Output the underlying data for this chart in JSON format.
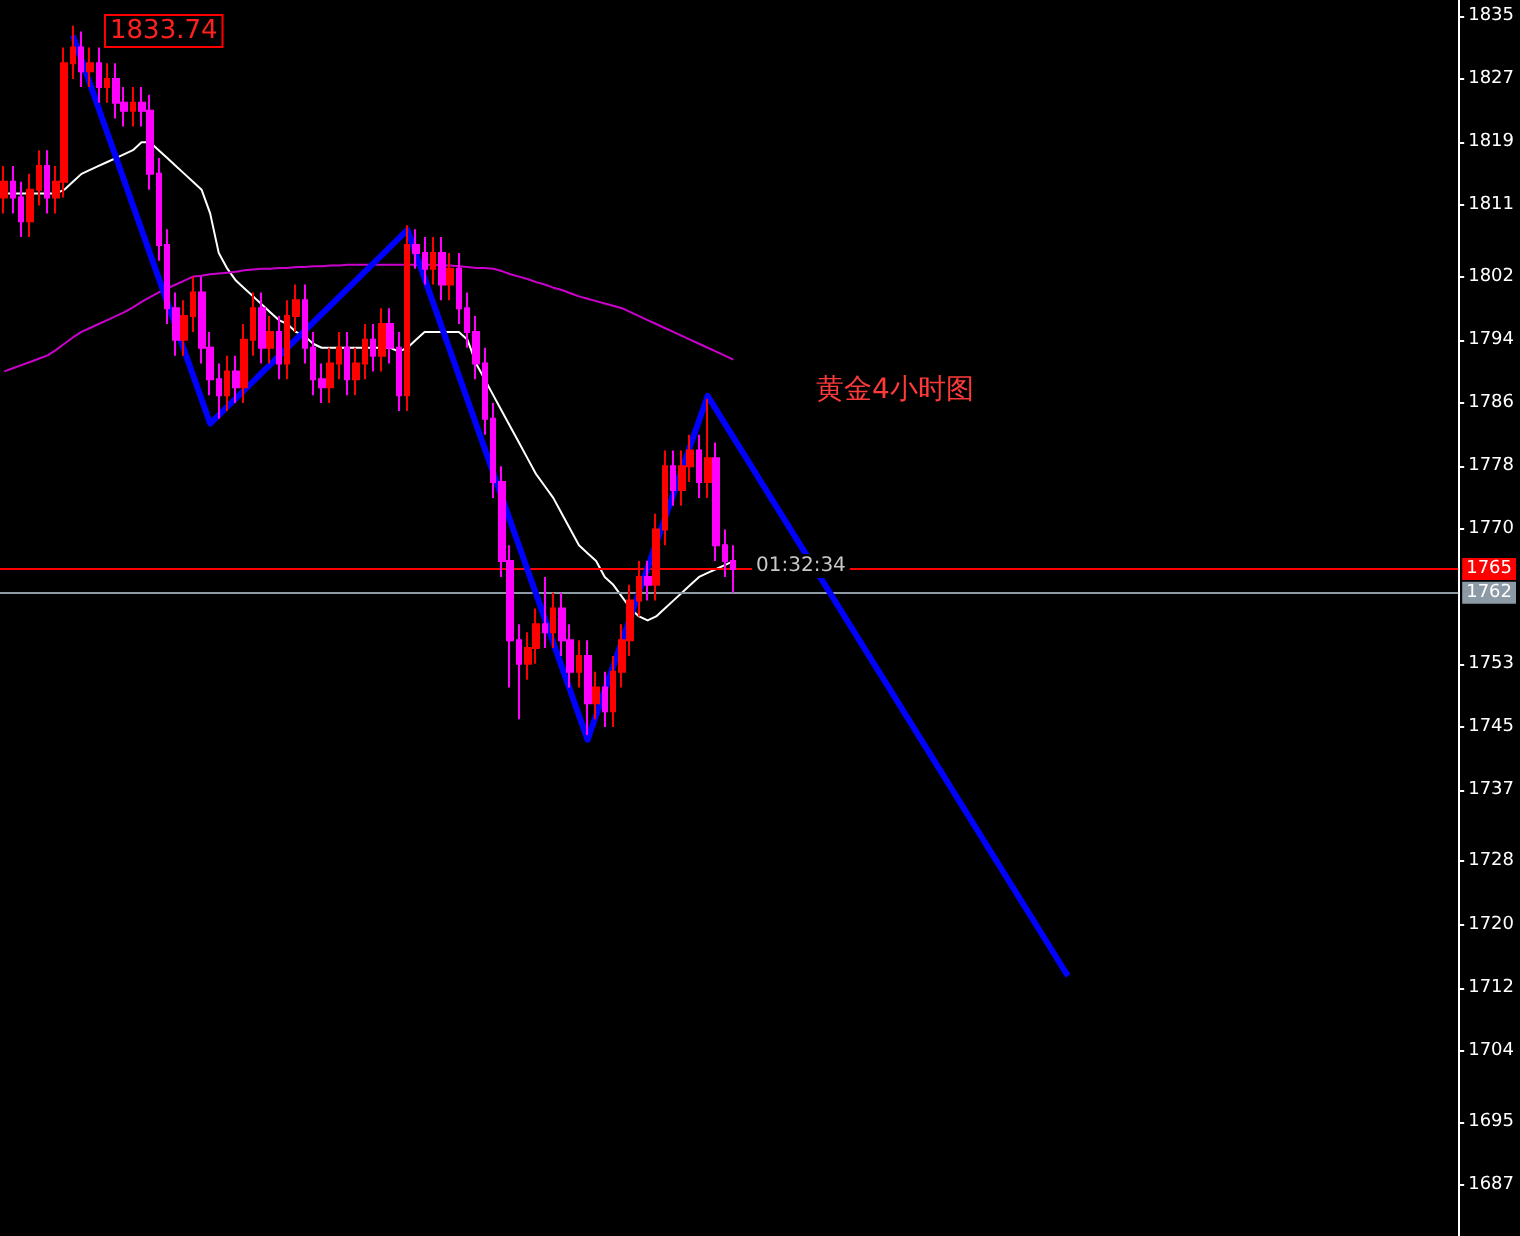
{
  "chart_data": {
    "type": "candlestick",
    "categories": [
      null,
      null,
      null,
      null,
      null,
      null,
      null,
      null,
      null,
      null,
      null,
      null,
      null,
      null,
      null,
      null,
      null,
      null,
      null,
      null,
      null,
      null,
      null,
      null,
      null,
      null,
      null,
      null,
      null,
      null,
      null,
      null,
      null,
      null,
      null,
      null,
      null,
      null,
      null,
      null,
      null,
      null,
      null,
      null,
      null,
      null,
      null,
      null,
      null,
      null,
      null,
      null,
      null,
      null,
      null,
      null,
      null,
      null,
      null,
      null,
      null,
      null,
      null,
      null,
      null,
      null,
      null,
      null,
      null,
      null,
      null,
      null,
      null,
      null,
      null,
      null,
      null,
      null,
      null,
      null,
      null,
      null,
      null,
      null,
      null,
      null,
      null,
      null,
      null,
      null,
      null,
      null,
      null,
      null,
      null,
      null,
      null,
      null,
      null,
      null,
      null,
      null,
      null,
      null,
      null,
      null,
      null,
      null,
      null,
      null,
      null,
      null,
      null,
      null,
      null,
      null,
      null,
      null,
      null,
      null,
      null,
      null,
      null,
      null,
      null,
      null,
      null,
      null,
      null,
      null,
      null,
      null,
      null,
      null,
      null,
      null,
      null,
      null,
      null,
      null,
      null,
      null,
      null,
      null,
      null,
      null,
      null,
      null,
      null,
      null,
      null,
      null,
      null,
      null,
      null,
      null,
      null,
      null,
      null,
      null,
      null,
      null,
      null,
      null,
      null,
      null,
      null,
      null,
      null,
      null
    ],
    "series": [
      {
        "ohlc": [
          [
            1812,
            1816,
            1810,
            1814
          ],
          [
            1814,
            1816,
            1810,
            1812
          ],
          [
            1812,
            1814,
            1807,
            1809
          ],
          [
            1809,
            1815,
            1807,
            1813
          ],
          [
            1813,
            1818,
            1811,
            1816
          ],
          [
            1816,
            1818,
            1810,
            1812
          ],
          [
            1812,
            1816,
            1810,
            1814
          ],
          [
            1814,
            1831,
            1812,
            1829
          ],
          [
            1829,
            1833.74,
            1827,
            1831
          ],
          [
            1831,
            1833,
            1826,
            1828
          ],
          [
            1828,
            1831,
            1826,
            1829
          ],
          [
            1829,
            1831,
            1824,
            1826
          ],
          [
            1826,
            1829,
            1824,
            1827
          ],
          [
            1827,
            1829,
            1822,
            1824
          ],
          [
            1824,
            1826,
            1821,
            1823
          ],
          [
            1823,
            1826,
            1821,
            1824
          ],
          [
            1824,
            1826,
            1821,
            1823
          ],
          [
            1823,
            1825,
            1813,
            1815
          ],
          [
            1815,
            1817,
            1804,
            1806
          ],
          [
            1806,
            1808,
            1796,
            1798
          ],
          [
            1798,
            1800,
            1792,
            1794
          ],
          [
            1794,
            1799,
            1792,
            1797
          ],
          [
            1797,
            1802,
            1795,
            1800
          ],
          [
            1800,
            1802,
            1791,
            1793
          ],
          [
            1793,
            1795,
            1787,
            1789
          ],
          [
            1789,
            1791,
            1784,
            1787
          ],
          [
            1787,
            1792,
            1785,
            1790
          ],
          [
            1790,
            1792,
            1786,
            1788
          ],
          [
            1788,
            1796,
            1786,
            1794
          ],
          [
            1794,
            1800,
            1792,
            1798
          ],
          [
            1798,
            1800,
            1791,
            1793
          ],
          [
            1793,
            1797,
            1791,
            1795
          ],
          [
            1795,
            1797,
            1789,
            1791
          ],
          [
            1791,
            1799,
            1789,
            1797
          ],
          [
            1797,
            1801,
            1795,
            1799
          ],
          [
            1799,
            1801,
            1791,
            1793
          ],
          [
            1793,
            1795,
            1787,
            1789
          ],
          [
            1789,
            1791,
            1786,
            1788
          ],
          [
            1788,
            1793,
            1786,
            1791
          ],
          [
            1791,
            1795,
            1789,
            1793
          ],
          [
            1793,
            1795,
            1787,
            1789
          ],
          [
            1789,
            1793,
            1787,
            1791
          ],
          [
            1791,
            1796,
            1789,
            1794
          ],
          [
            1794,
            1796,
            1790,
            1792
          ],
          [
            1792,
            1798,
            1790,
            1796
          ],
          [
            1796,
            1798,
            1791,
            1793
          ],
          [
            1793,
            1795,
            1785,
            1787
          ],
          [
            1787,
            1808.5,
            1785,
            1806
          ],
          [
            1806,
            1808,
            1803,
            1805
          ],
          [
            1805,
            1807,
            1801,
            1803
          ],
          [
            1803,
            1807,
            1801,
            1805
          ],
          [
            1805,
            1807,
            1799,
            1801
          ],
          [
            1801,
            1805,
            1799,
            1803
          ],
          [
            1803,
            1805,
            1796,
            1798
          ],
          [
            1798,
            1800,
            1793,
            1795
          ],
          [
            1795,
            1797,
            1789,
            1791
          ],
          [
            1791,
            1793,
            1782,
            1784
          ],
          [
            1784,
            1786,
            1774,
            1776
          ],
          [
            1776,
            1778,
            1764,
            1766
          ],
          [
            1766,
            1768,
            1750,
            1756
          ],
          [
            1756,
            1758,
            1746,
            1753
          ],
          [
            1753,
            1757,
            1751,
            1755
          ],
          [
            1755,
            1760,
            1753,
            1758
          ],
          [
            1758,
            1764,
            1755,
            1757
          ],
          [
            1757,
            1762,
            1755,
            1760
          ],
          [
            1760,
            1762,
            1754,
            1756
          ],
          [
            1756,
            1758,
            1750,
            1752
          ],
          [
            1752,
            1756,
            1750,
            1754
          ],
          [
            1754,
            1756,
            1744,
            1748
          ],
          [
            1748,
            1752,
            1746,
            1750
          ],
          [
            1750,
            1752,
            1745,
            1747
          ],
          [
            1747,
            1754,
            1745,
            1752
          ],
          [
            1752,
            1758,
            1750,
            1756
          ],
          [
            1756,
            1763,
            1754,
            1761
          ],
          [
            1761,
            1766,
            1759,
            1764
          ],
          [
            1764,
            1766,
            1761,
            1763
          ],
          [
            1763,
            1772,
            1761,
            1770
          ],
          [
            1770,
            1780,
            1768,
            1778
          ],
          [
            1778,
            1780,
            1773,
            1775
          ],
          [
            1775,
            1780,
            1773,
            1778
          ],
          [
            1778,
            1782,
            1776,
            1780
          ],
          [
            1780,
            1782,
            1774,
            1776
          ],
          [
            1776,
            1786.5,
            1774,
            1779
          ],
          [
            1779,
            1781,
            1766,
            1768
          ],
          [
            1768,
            1770,
            1764,
            1766
          ],
          [
            1766,
            1768,
            1762,
            1765
          ],
          null,
          null,
          null,
          null,
          null,
          null,
          null,
          null,
          null,
          null,
          null,
          null,
          null,
          null,
          null,
          null,
          null,
          null,
          null,
          null,
          null,
          null,
          null,
          null,
          null,
          null,
          null,
          null,
          null,
          null,
          null,
          null,
          null,
          null,
          null,
          null,
          null,
          null,
          null,
          null,
          null,
          null,
          null,
          null,
          null,
          null,
          null,
          null,
          null,
          null,
          null,
          null,
          null,
          null,
          null,
          null,
          null,
          null,
          null,
          null,
          null,
          null,
          null,
          null,
          null,
          null,
          null,
          null,
          null,
          null,
          null,
          null,
          null,
          null,
          null,
          null,
          null,
          null,
          null,
          null,
          null,
          null,
          null,
          null
        ],
        "colors": [
          "#ff0000",
          "#ff00ff",
          "#ff00ff",
          "#ff0000",
          "#ff0000",
          "#ff00ff",
          "#ff0000",
          "#ff0000",
          "#ff0000",
          "#ff00ff",
          "#ff0000",
          "#ff00ff",
          "#ff0000",
          "#ff00ff",
          "#ff00ff",
          "#ff0000",
          "#ff00ff",
          "#ff00ff",
          "#ff00ff",
          "#ff00ff",
          "#ff00ff",
          "#ff0000",
          "#ff0000",
          "#ff00ff",
          "#ff00ff",
          "#ff00ff",
          "#ff0000",
          "#ff00ff",
          "#ff0000",
          "#ff0000",
          "#ff00ff",
          "#ff0000",
          "#ff00ff",
          "#ff0000",
          "#ff0000",
          "#ff00ff",
          "#ff00ff",
          "#ff00ff",
          "#ff0000",
          "#ff0000",
          "#ff00ff",
          "#ff0000",
          "#ff0000",
          "#ff00ff",
          "#ff0000",
          "#ff00ff",
          "#ff00ff",
          "#ff0000",
          "#ff00ff",
          "#ff00ff",
          "#ff0000",
          "#ff00ff",
          "#ff0000",
          "#ff00ff",
          "#ff00ff",
          "#ff00ff",
          "#ff00ff",
          "#ff00ff",
          "#ff00ff",
          "#ff00ff",
          "#ff00ff",
          "#ff0000",
          "#ff0000",
          "#ff00ff",
          "#ff0000",
          "#ff00ff",
          "#ff00ff",
          "#ff0000",
          "#ff00ff",
          "#ff0000",
          "#ff00ff",
          "#ff0000",
          "#ff0000",
          "#ff0000",
          "#ff0000",
          "#ff00ff",
          "#ff0000",
          "#ff0000",
          "#ff00ff",
          "#ff0000",
          "#ff0000",
          "#ff00ff",
          "#ff0000",
          "#ff00ff",
          "#ff00ff",
          "#ff00ff",
          null,
          null,
          null,
          null,
          null,
          null,
          null,
          null,
          null,
          null,
          null,
          null,
          null,
          null,
          null,
          null,
          null,
          null,
          null,
          null,
          null,
          null,
          null,
          null,
          null,
          null,
          null,
          null,
          null,
          null,
          null,
          null,
          null,
          null,
          null,
          null,
          null,
          null,
          null,
          null,
          null,
          null,
          null,
          null,
          null,
          null,
          null,
          null,
          null,
          null,
          null,
          null,
          null,
          null,
          null,
          null,
          null,
          null,
          null,
          null,
          null,
          null,
          null,
          null,
          null,
          null,
          null,
          null,
          null,
          null,
          null,
          null,
          null,
          null,
          null,
          null,
          null,
          null,
          null,
          null,
          null,
          null,
          null,
          null
        ]
      },
      {
        "type": "line",
        "color": "#ffffff",
        "values": [
          1812.5,
          1812.5,
          1812.5,
          1812.5,
          1812.5,
          1812.5,
          1812.5,
          1813,
          1814,
          1815,
          1815.5,
          1816,
          1816.5,
          1817,
          1817.5,
          1818,
          1819,
          1819,
          1818,
          1817,
          1816,
          1815,
          1814,
          1813,
          1810,
          1805,
          1803,
          1801.5,
          1800.5,
          1799.5,
          1798.5,
          1797.5,
          1796.5,
          1796,
          1795,
          1794.5,
          1793.5,
          1793,
          1793,
          1793,
          1793,
          1793,
          1793,
          1793,
          1793,
          1793,
          1792.5,
          1793,
          1794,
          1795,
          1795,
          1795,
          1795,
          1795,
          1794,
          1791,
          1789,
          1787,
          1785,
          1783,
          1781,
          1779,
          1777,
          1775.5,
          1774,
          1772,
          1770,
          1768,
          1767,
          1766,
          1764,
          1763,
          1761.5,
          1760,
          1759,
          1758.5,
          1759,
          1760,
          1761,
          1762,
          1763,
          1764,
          1764.5,
          1765,
          1765.5,
          1766,
          null,
          null,
          null,
          null,
          null,
          null,
          null,
          null,
          null,
          null,
          null,
          null,
          null,
          null,
          null,
          null,
          null,
          null,
          null,
          null,
          null,
          null,
          null,
          null,
          null,
          null,
          null,
          null,
          null,
          null,
          null,
          null,
          null,
          null,
          null,
          null,
          null,
          null,
          null,
          null,
          null,
          null,
          null,
          null,
          null,
          null,
          null,
          null,
          null,
          null,
          null,
          null,
          null,
          null,
          null,
          null,
          null,
          null,
          null,
          null,
          null,
          null,
          null,
          null,
          null,
          null,
          null,
          null,
          null,
          null,
          null,
          null,
          null,
          null,
          null,
          null,
          null,
          null,
          null,
          null,
          null,
          null,
          null,
          null
        ]
      },
      {
        "type": "line",
        "color": "#cc00cc",
        "values": [
          1790,
          1790.4,
          1790.8,
          1791.2,
          1791.6,
          1792,
          1792.7,
          1793.5,
          1794.3,
          1795,
          1795.5,
          1796,
          1796.5,
          1797,
          1797.5,
          1798.1,
          1798.8,
          1799.4,
          1800,
          1800.5,
          1801,
          1801.5,
          1802,
          1802.1,
          1802.3,
          1802.4,
          1802.5,
          1802.6,
          1802.8,
          1802.9,
          1803,
          1803,
          1803.1,
          1803.1,
          1803.2,
          1803.2,
          1803.3,
          1803.3,
          1803.4,
          1803.4,
          1803.5,
          1803.5,
          1803.5,
          1803.5,
          1803.5,
          1803.5,
          1803.5,
          1803.5,
          1803.5,
          1803.5,
          1803.5,
          1803.4,
          1803.4,
          1803.3,
          1803.2,
          1803.1,
          1803.1,
          1803,
          1802.7,
          1802.3,
          1802,
          1801.7,
          1801.3,
          1801,
          1800.6,
          1800.3,
          1799.9,
          1799.5,
          1799.2,
          1798.9,
          1798.6,
          1798.3,
          1798,
          1797.5,
          1797,
          1796.5,
          1796,
          1795.5,
          1795,
          1794.5,
          1794,
          1793.5,
          1793,
          1792.5,
          1792,
          1791.5,
          null,
          null,
          null,
          null,
          null,
          null,
          null,
          null,
          null,
          null,
          null,
          null,
          null,
          null,
          null,
          null,
          null,
          null,
          null,
          null,
          null,
          null,
          null,
          null,
          null,
          null,
          null,
          null,
          null,
          null,
          null,
          null,
          null,
          null,
          null,
          null,
          null,
          null,
          null,
          null,
          null,
          null,
          null,
          null,
          null,
          null,
          null,
          null,
          null,
          null,
          null,
          null,
          null,
          null,
          null,
          null,
          null,
          null,
          null,
          null,
          null,
          null,
          null,
          null,
          null,
          null,
          null,
          null,
          null,
          null,
          null,
          null,
          null,
          null,
          null,
          null,
          null,
          null,
          null,
          null,
          null,
          null,
          null,
          null
        ]
      },
      {
        "type": "line",
        "color": "#0000ff",
        "values": [
          null,
          null,
          null,
          null,
          null,
          null,
          null,
          null,
          1832.5,
          null,
          null,
          null,
          null,
          null,
          null,
          null,
          null,
          null,
          null,
          null,
          null,
          null,
          null,
          null,
          1783.4,
          null,
          null,
          null,
          null,
          null,
          null,
          null,
          null,
          null,
          null,
          null,
          null,
          null,
          null,
          null,
          null,
          null,
          null,
          null,
          null,
          null,
          null,
          1807.9,
          null,
          null,
          null,
          null,
          null,
          null,
          null,
          null,
          null,
          null,
          null,
          null,
          null,
          null,
          null,
          null,
          null,
          null,
          null,
          null,
          1743.4,
          null,
          null,
          null,
          null,
          null,
          null,
          null,
          null,
          null,
          null,
          null,
          null,
          null,
          1786.9,
          null,
          null,
          null,
          null,
          null,
          null,
          null,
          null,
          null,
          null,
          null,
          null,
          null,
          null,
          null,
          null,
          null,
          null,
          null,
          null,
          null,
          null,
          null,
          null,
          null,
          null,
          null,
          null,
          null,
          null,
          null,
          null,
          null,
          null,
          null,
          null,
          null,
          null,
          null,
          null,
          null,
          1713.5,
          null,
          null,
          null,
          null,
          null,
          null,
          null,
          null,
          null,
          null,
          null,
          null,
          null,
          null,
          null,
          null,
          null,
          null,
          null,
          null,
          null,
          null,
          null,
          null,
          null,
          null,
          null,
          null,
          null,
          null,
          null,
          null,
          null,
          null,
          null,
          null,
          null,
          null,
          null,
          null,
          null,
          null,
          null,
          null,
          null
        ]
      }
    ],
    "ylim": [
      1680.6,
      1837
    ],
    "yticks": [
      1835,
      1827,
      1819,
      1811,
      1802,
      1794,
      1786,
      1778,
      1770,
      1753,
      1745,
      1737,
      1728,
      1720,
      1712,
      1704,
      1695,
      1687
    ],
    "ref_lines": [
      {
        "axis": "y",
        "value": 1765,
        "label": "1765",
        "color": "#ff0000"
      },
      {
        "axis": "y",
        "value": 1762,
        "label": "1762",
        "color": "#8c9aa6"
      }
    ],
    "annotations": [
      "1833.74",
      "黄金4小时图",
      "01:32:34"
    ],
    "tick_labels": "y",
    "grid": false
  }
}
